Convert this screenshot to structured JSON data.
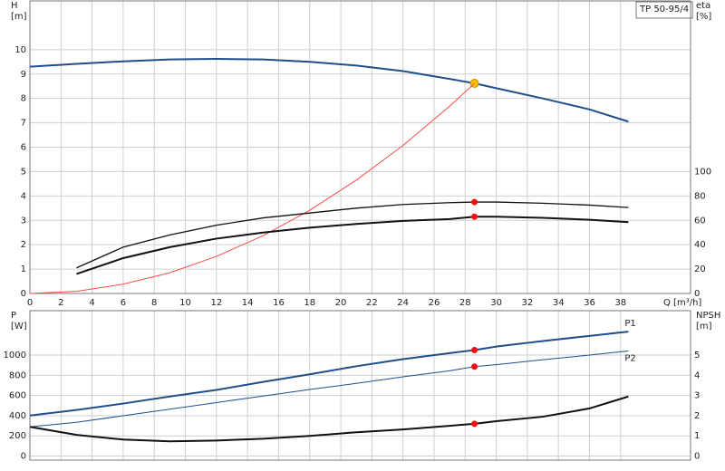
{
  "chart_data": [
    {
      "type": "line",
      "title": "TP 50-95/4",
      "xlabel": "Q [m³/h]",
      "ylabel": "H",
      "yunit": "[m]",
      "y2label": "eta",
      "y2unit": "[%]",
      "x": [
        0,
        3,
        6,
        9,
        12,
        15,
        18,
        21,
        24,
        27,
        28.6,
        30,
        33,
        36,
        38.5
      ],
      "xlim": [
        0,
        42.5
      ],
      "xticks": [
        0,
        2,
        4,
        6,
        8,
        10,
        12,
        14,
        16,
        18,
        20,
        22,
        24,
        26,
        28,
        30,
        32,
        34,
        36,
        38
      ],
      "ylim": [
        0,
        12
      ],
      "yticks": [
        0,
        1,
        2,
        3,
        4,
        5,
        6,
        7,
        8,
        9,
        10
      ],
      "y2lim": [
        0,
        240
      ],
      "y2ticks": [
        0,
        20,
        40,
        60,
        80,
        100
      ],
      "grid": true,
      "duty_point_x": 28.6,
      "series": [
        {
          "color": "#1f4e8c",
          "width": 2,
          "point_color": "#f5c400",
          "values": [
            9.3,
            9.42,
            9.52,
            9.6,
            9.62,
            9.6,
            9.5,
            9.35,
            9.12,
            8.8,
            8.62,
            8.42,
            8.0,
            7.55,
            7.05
          ]
        },
        {
          "color": "#ff4a4a",
          "width": 1,
          "values": [
            0,
            0.09,
            0.38,
            0.85,
            1.52,
            2.37,
            3.41,
            4.65,
            6.07,
            7.68,
            8.62,
            null,
            null,
            null,
            null
          ]
        },
        {
          "color": "#111111",
          "width": 1.3,
          "axis": "y2",
          "point_color": "#ee1111",
          "values": [
            null,
            21,
            38,
            48,
            56,
            62,
            66,
            70,
            73,
            74.5,
            75,
            75,
            74,
            72.5,
            70.5
          ]
        },
        {
          "color": "#111111",
          "width": 2,
          "axis": "y2",
          "point_color": "#ee1111",
          "values": [
            null,
            16,
            29,
            38,
            45,
            50,
            54,
            57,
            59.5,
            61,
            63,
            63,
            62,
            60.5,
            58.5
          ]
        }
      ]
    },
    {
      "type": "line",
      "ylabel": "P",
      "yunit": "[W]",
      "y2label": "NPSH",
      "y2unit": "[m]",
      "x": [
        0,
        3,
        6,
        9,
        12,
        15,
        18,
        21,
        24,
        27,
        28.6,
        30,
        33,
        36,
        38.5
      ],
      "xlim": [
        0,
        42.5
      ],
      "xticks": [
        0,
        2,
        4,
        6,
        8,
        10,
        12,
        14,
        16,
        18,
        20,
        22,
        24,
        26,
        28,
        30,
        32,
        34,
        36,
        38
      ],
      "ylim": [
        -40,
        1440
      ],
      "yticks": [
        0,
        200,
        400,
        600,
        800,
        1000
      ],
      "y2lim": [
        -0.2,
        7.2
      ],
      "y2ticks": [
        0,
        1,
        2,
        3,
        4,
        5
      ],
      "grid": true,
      "duty_point_x": 28.6,
      "series": [
        {
          "name": "P1",
          "color": "#1f4e8c",
          "width": 2,
          "point_color": "#ee1111",
          "values": [
            402,
            457,
            520,
            590,
            655,
            735,
            810,
            890,
            960,
            1020,
            1050,
            1085,
            1140,
            1190,
            1233
          ]
        },
        {
          "name": "P2",
          "color": "#1f4e8c",
          "width": 1,
          "point_color": "#ee1111",
          "values": [
            290,
            335,
            400,
            465,
            530,
            595,
            660,
            720,
            785,
            845,
            886,
            905,
            955,
            1000,
            1041
          ]
        },
        {
          "color": "#111111",
          "width": 2,
          "axis": "y2",
          "point_color": "#ee1111",
          "values": [
            1.45,
            1.05,
            0.82,
            0.73,
            0.77,
            0.86,
            1.0,
            1.18,
            1.32,
            1.5,
            1.6,
            1.73,
            1.95,
            2.36,
            2.95
          ]
        }
      ]
    }
  ]
}
